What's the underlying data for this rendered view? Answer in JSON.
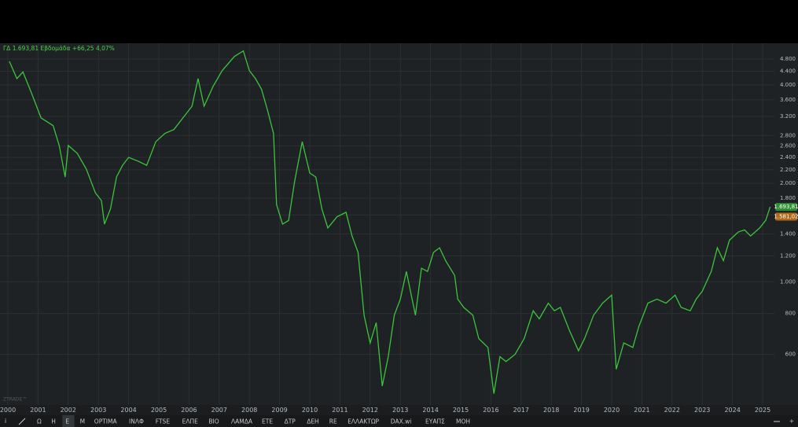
{
  "header": "ΓΔ 1.693,81 Εβδομάδα +66,25 4,07%",
  "watermark": "ZTRADE™",
  "toolbar": [
    "Ω",
    "Η",
    "Ε",
    "Μ",
    "OPTIMA",
    "ΙΝΛΦ",
    "FTSE",
    "ΕΛΠΕ",
    "ΒΙΟ",
    "ΛΑΜΔΑ",
    "ΕΤΕ",
    "ΔΤΡ",
    "ΔΕΗ",
    "RE",
    "ΕΛΛΑΚΤΩΡ",
    "DAX.wi",
    "ΕΥΑΠΣ",
    "ΜΟΗ"
  ],
  "chart_data": {
    "type": "line",
    "ylog": true,
    "grid": true,
    "xlim": [
      1999.74,
      2025.39
    ],
    "ylim": [
      420,
      5360
    ],
    "xticks": [
      2000,
      2001,
      2002,
      2003,
      2004,
      2005,
      2006,
      2007,
      2008,
      2009,
      2010,
      2011,
      2012,
      2013,
      2014,
      2015,
      2016,
      2017,
      2018,
      2019,
      2020,
      2021,
      2022,
      2023,
      2024,
      2025
    ],
    "yticks": [
      {
        "value": 600,
        "label": "600"
      },
      {
        "value": 800,
        "label": "800"
      },
      {
        "value": 1000,
        "label": "1.000"
      },
      {
        "value": 1200,
        "label": "1.200"
      },
      {
        "value": 1400,
        "label": "1.400"
      },
      {
        "value": 1600,
        "label": "1.600"
      },
      {
        "value": 1800,
        "label": "1.800"
      },
      {
        "value": 2000,
        "label": "2.000"
      },
      {
        "value": 2200,
        "label": "2.200"
      },
      {
        "value": 2400,
        "label": "2.400"
      },
      {
        "value": 2600,
        "label": "2.600"
      },
      {
        "value": 2800,
        "label": "2.800"
      },
      {
        "value": 3200,
        "label": "3.200"
      },
      {
        "value": 3600,
        "label": "3.600"
      },
      {
        "value": 4000,
        "label": "4.000"
      },
      {
        "value": 4400,
        "label": "4.400"
      },
      {
        "value": 4800,
        "label": "4.800"
      }
    ],
    "markers": [
      {
        "value": 1693.81,
        "label": "1.693,81",
        "color": "#2f8f35"
      },
      {
        "value": 1581.02,
        "label": "1.581,02",
        "color": "#b06a1c"
      }
    ],
    "x": [
      2000.05,
      2000.3,
      2000.5,
      2000.8,
      2001.1,
      2001.5,
      2001.7,
      2001.9,
      2002.0,
      2002.3,
      2002.6,
      2002.9,
      2003.1,
      2003.2,
      2003.4,
      2003.6,
      2003.8,
      2004.0,
      2004.3,
      2004.6,
      2004.9,
      2005.2,
      2005.5,
      2005.8,
      2006.1,
      2006.3,
      2006.5,
      2006.8,
      2007.1,
      2007.5,
      2007.8,
      2008.0,
      2008.2,
      2008.4,
      2008.6,
      2008.8,
      2008.9,
      2009.1,
      2009.3,
      2009.5,
      2009.75,
      2010.0,
      2010.2,
      2010.4,
      2010.6,
      2010.9,
      2011.2,
      2011.4,
      2011.6,
      2011.8,
      2012.0,
      2012.2,
      2012.4,
      2012.6,
      2012.8,
      2013.0,
      2013.2,
      2013.5,
      2013.7,
      2013.9,
      2014.1,
      2014.3,
      2014.5,
      2014.8,
      2014.9,
      2015.1,
      2015.4,
      2015.6,
      2015.9,
      2016.1,
      2016.3,
      2016.5,
      2016.8,
      2017.1,
      2017.4,
      2017.6,
      2017.9,
      2018.1,
      2018.3,
      2018.6,
      2018.9,
      2019.1,
      2019.4,
      2019.7,
      2020.0,
      2020.15,
      2020.4,
      2020.7,
      2020.9,
      2021.2,
      2021.5,
      2021.8,
      2022.1,
      2022.3,
      2022.6,
      2022.8,
      2023.0,
      2023.3,
      2023.5,
      2023.7,
      2023.9,
      2024.2,
      2024.4,
      2024.6,
      2024.9,
      2025.1,
      2025.25
    ],
    "series": [
      {
        "name": "ΓΔ",
        "color": "#3cc43c",
        "values": [
          4720,
          4180,
          4380,
          3740,
          3170,
          3000,
          2610,
          2090,
          2610,
          2470,
          2210,
          1870,
          1770,
          1500,
          1670,
          2090,
          2270,
          2400,
          2340,
          2270,
          2680,
          2840,
          2920,
          3170,
          3440,
          4180,
          3440,
          3960,
          4420,
          4880,
          5080,
          4420,
          4180,
          3880,
          3350,
          2840,
          1720,
          1500,
          1540,
          2030,
          2680,
          2150,
          2090,
          1670,
          1460,
          1580,
          1630,
          1380,
          1230,
          790,
          650,
          750,
          480,
          590,
          790,
          885,
          1075,
          790,
          1100,
          1075,
          1230,
          1270,
          1160,
          1045,
          885,
          835,
          790,
          670,
          630,
          455,
          590,
          570,
          600,
          670,
          815,
          770,
          860,
          815,
          835,
          710,
          615,
          670,
          790,
          860,
          910,
          540,
          650,
          630,
          730,
          860,
          885,
          860,
          910,
          835,
          815,
          885,
          935,
          1075,
          1270,
          1160,
          1340,
          1420,
          1440,
          1380,
          1460,
          1540,
          1693.81
        ]
      }
    ]
  }
}
